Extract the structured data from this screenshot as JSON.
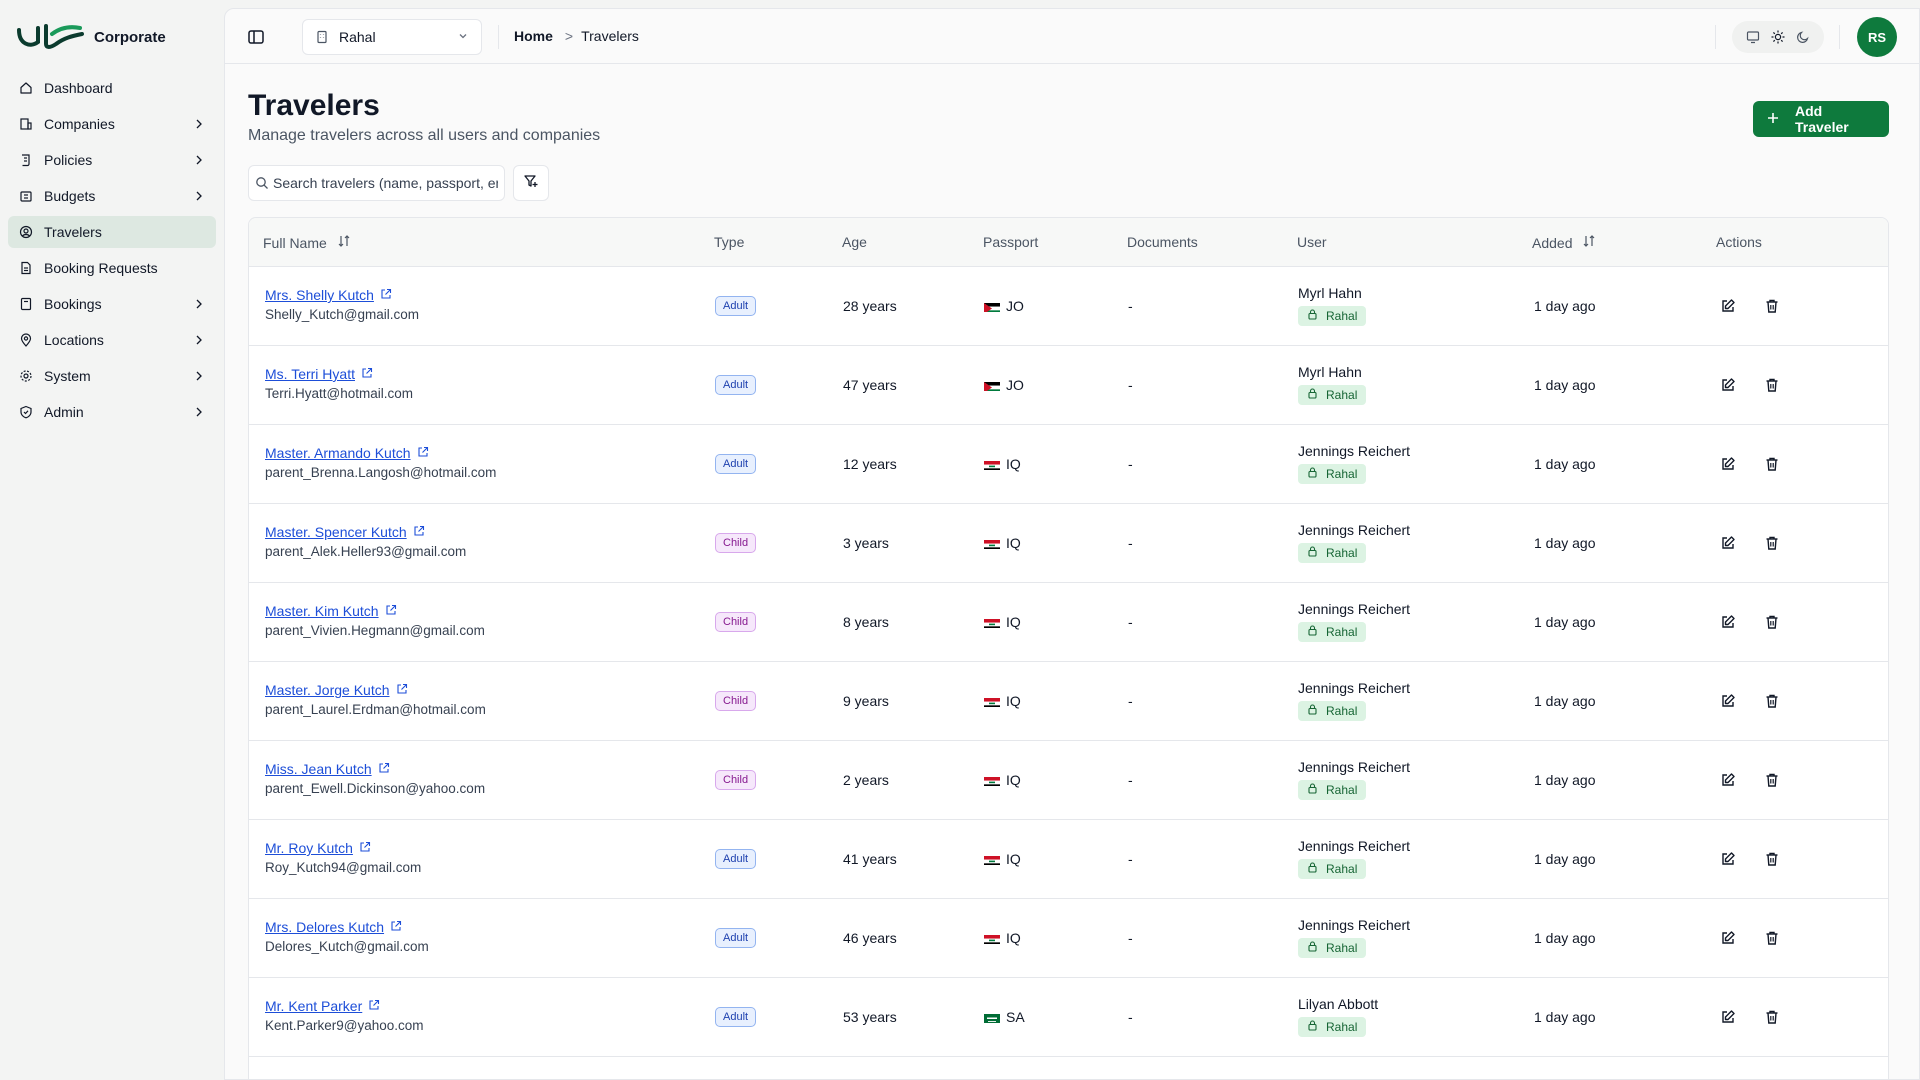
{
  "brand": {
    "logo_text": "Corporate"
  },
  "sidebar": {
    "items": [
      {
        "label": "Dashboard",
        "icon": "home-icon",
        "chevron": false,
        "active": false
      },
      {
        "label": "Companies",
        "icon": "building-icon",
        "chevron": true,
        "active": false
      },
      {
        "label": "Policies",
        "icon": "scroll-icon",
        "chevron": true,
        "active": false
      },
      {
        "label": "Budgets",
        "icon": "wallet-icon",
        "chevron": true,
        "active": false
      },
      {
        "label": "Travelers",
        "icon": "user-circle-icon",
        "chevron": false,
        "active": true
      },
      {
        "label": "Booking Requests",
        "icon": "file-icon",
        "chevron": false,
        "active": false
      },
      {
        "label": "Bookings",
        "icon": "book-icon",
        "chevron": true,
        "active": false
      },
      {
        "label": "Locations",
        "icon": "map-pin-icon",
        "chevron": true,
        "active": false
      },
      {
        "label": "System",
        "icon": "gear-icon",
        "chevron": true,
        "active": false
      },
      {
        "label": "Admin",
        "icon": "shield-icon",
        "chevron": true,
        "active": false
      }
    ]
  },
  "topbar": {
    "company_select": "Rahal",
    "breadcrumb": {
      "home": "Home",
      "separator": ">",
      "current": "Travelers"
    },
    "avatar_initials": "RS"
  },
  "page": {
    "title": "Travelers",
    "subtitle": "Manage travelers across all users and companies",
    "add_button": "Add Traveler",
    "search_placeholder": "Search travelers (name, passport, email...)"
  },
  "table": {
    "columns": [
      "Full Name",
      "Type",
      "Age",
      "Passport",
      "Documents",
      "User",
      "Added",
      "Actions"
    ],
    "rows": [
      {
        "name": "Mrs. Shelly Kutch",
        "email": "Shelly_Kutch@gmail.com",
        "type": "Adult",
        "age": "28 years",
        "passport": "JO",
        "documents": "-",
        "user": "Myrl Hahn",
        "company": "Rahal",
        "added": "1 day ago"
      },
      {
        "name": "Ms. Terri Hyatt",
        "email": "Terri.Hyatt@hotmail.com",
        "type": "Adult",
        "age": "47 years",
        "passport": "JO",
        "documents": "-",
        "user": "Myrl Hahn",
        "company": "Rahal",
        "added": "1 day ago"
      },
      {
        "name": "Master. Armando Kutch",
        "email": "parent_Brenna.Langosh@hotmail.com",
        "type": "Adult",
        "age": "12 years",
        "passport": "IQ",
        "documents": "-",
        "user": "Jennings Reichert",
        "company": "Rahal",
        "added": "1 day ago"
      },
      {
        "name": "Master. Spencer Kutch",
        "email": "parent_Alek.Heller93@gmail.com",
        "type": "Child",
        "age": "3 years",
        "passport": "IQ",
        "documents": "-",
        "user": "Jennings Reichert",
        "company": "Rahal",
        "added": "1 day ago"
      },
      {
        "name": "Master. Kim Kutch",
        "email": "parent_Vivien.Hegmann@gmail.com",
        "type": "Child",
        "age": "8 years",
        "passport": "IQ",
        "documents": "-",
        "user": "Jennings Reichert",
        "company": "Rahal",
        "added": "1 day ago"
      },
      {
        "name": "Master. Jorge Kutch",
        "email": "parent_Laurel.Erdman@hotmail.com",
        "type": "Child",
        "age": "9 years",
        "passport": "IQ",
        "documents": "-",
        "user": "Jennings Reichert",
        "company": "Rahal",
        "added": "1 day ago"
      },
      {
        "name": "Miss. Jean Kutch",
        "email": "parent_Ewell.Dickinson@yahoo.com",
        "type": "Child",
        "age": "2 years",
        "passport": "IQ",
        "documents": "-",
        "user": "Jennings Reichert",
        "company": "Rahal",
        "added": "1 day ago"
      },
      {
        "name": "Mr. Roy Kutch",
        "email": "Roy_Kutch94@gmail.com",
        "type": "Adult",
        "age": "41 years",
        "passport": "IQ",
        "documents": "-",
        "user": "Jennings Reichert",
        "company": "Rahal",
        "added": "1 day ago"
      },
      {
        "name": "Mrs. Delores Kutch",
        "email": "Delores_Kutch@gmail.com",
        "type": "Adult",
        "age": "46 years",
        "passport": "IQ",
        "documents": "-",
        "user": "Jennings Reichert",
        "company": "Rahal",
        "added": "1 day ago"
      },
      {
        "name": "Mr. Kent Parker",
        "email": "Kent.Parker9@yahoo.com",
        "type": "Adult",
        "age": "53 years",
        "passport": "SA",
        "documents": "-",
        "user": "Lilyan Abbott",
        "company": "Rahal",
        "added": "1 day ago"
      }
    ]
  },
  "colors": {
    "brand": "#0e7a3d",
    "active_nav": "#dde8e1",
    "link": "#1d4ed8"
  }
}
